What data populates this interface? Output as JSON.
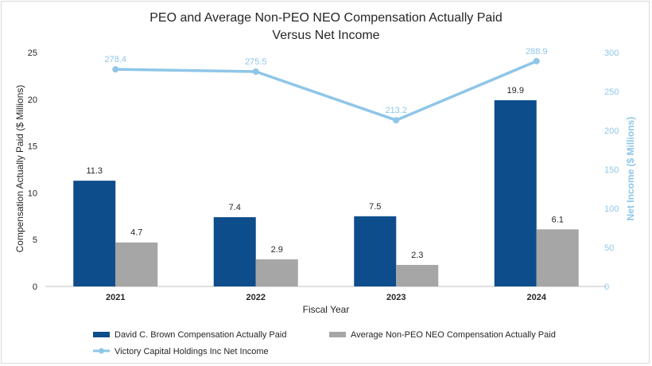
{
  "chart_data": {
    "type": "bar",
    "title": "PEO and Average Non-PEO NEO Compensation Actually Paid",
    "subtitle": "Versus Net Income",
    "categories": [
      "2021",
      "2022",
      "2023",
      "2024"
    ],
    "xlabel": "Fiscal Year",
    "ylabel": "Compensation Actually Paid ($ Millions)",
    "ylabel_right": "Net Income ($ Millions)",
    "ylim": [
      0,
      25
    ],
    "yticks": [
      "0",
      "5",
      "10",
      "15",
      "20",
      "25"
    ],
    "ylim_right": [
      0,
      300
    ],
    "yticks_right": [
      "0",
      "50",
      "100",
      "150",
      "200",
      "250",
      "300"
    ],
    "series": [
      {
        "name": "David C. Brown Compensation Actually Paid",
        "type": "bar",
        "axis": "left",
        "color": "#0e4d8b",
        "values": [
          11.3,
          7.4,
          7.5,
          19.9
        ],
        "labels": [
          "11.3",
          "7.4",
          "7.5",
          "19.9"
        ]
      },
      {
        "name": "Average Non-PEO NEO Compensation Actually Paid",
        "type": "bar",
        "axis": "left",
        "color": "#a6a6a6",
        "values": [
          4.7,
          2.9,
          2.3,
          6.1
        ],
        "labels": [
          "4.7",
          "2.9",
          "2.3",
          "6.1"
        ]
      },
      {
        "name": "Victory Capital Holdings Inc Net Income",
        "type": "line",
        "axis": "right",
        "color": "#8fc6e8",
        "values": [
          278.4,
          275.5,
          213.2,
          288.9
        ],
        "labels": [
          "278.4",
          "275.5",
          "213.2",
          "288.9"
        ]
      }
    ],
    "grid": false,
    "legend_position": "bottom"
  }
}
